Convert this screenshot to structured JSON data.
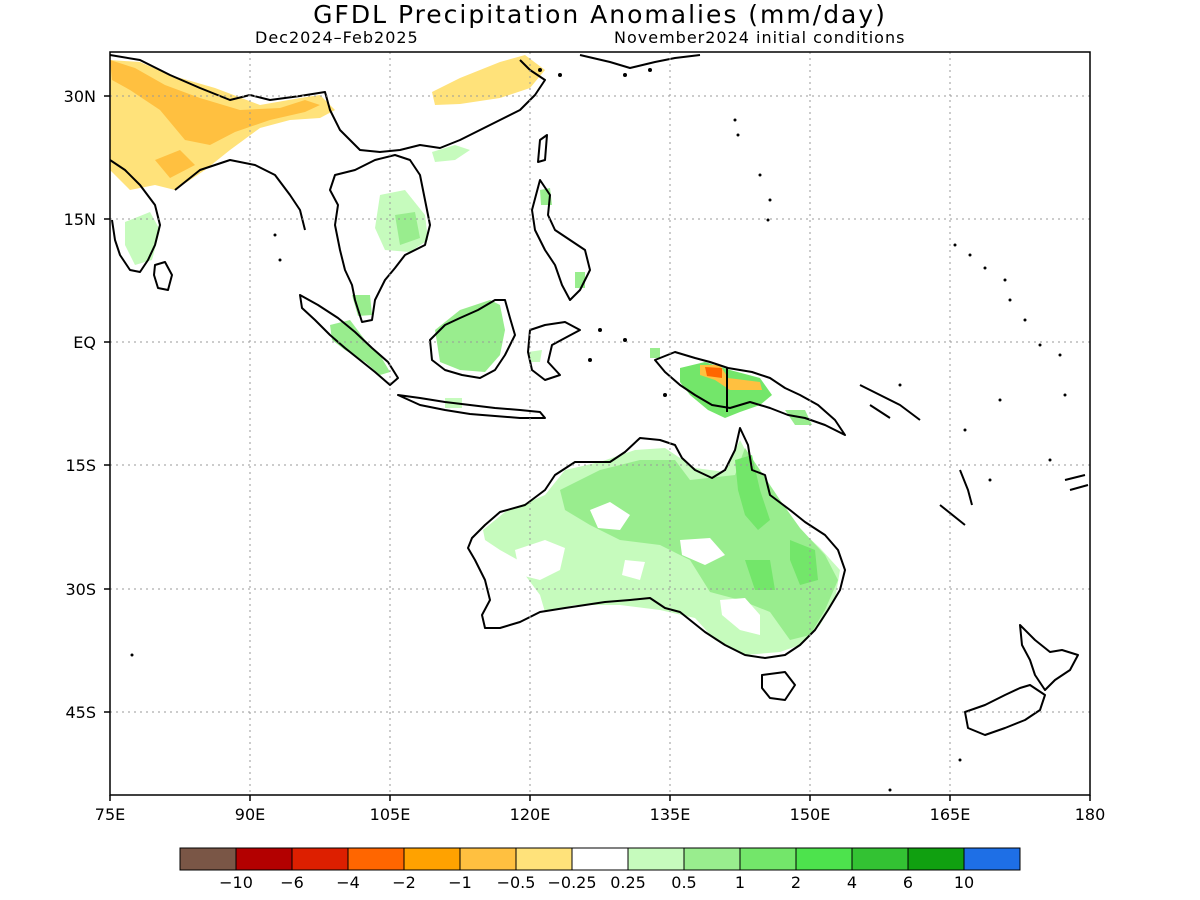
{
  "title": "GFDL Precipitation Anomalies (mm/day)",
  "subtitle_left": "Dec2024–Feb2025",
  "subtitle_right": "November2024 initial conditions",
  "map": {
    "lon_range": [
      75,
      180
    ],
    "lat_range": [
      -53,
      35
    ],
    "lat_ticks": [
      "30N",
      "15N",
      "EQ",
      "15S",
      "30S",
      "45S"
    ],
    "lon_ticks": [
      "75E",
      "90E",
      "105E",
      "120E",
      "135E",
      "150E",
      "165E",
      "180"
    ],
    "grid": "dotted",
    "regions": [
      {
        "name": "Northern India / Himalaya",
        "anomaly": "-0.5 to -2 (dry)"
      },
      {
        "name": "Eastern China",
        "anomaly": "-0.5 to -1 (dry)"
      },
      {
        "name": "Indochina",
        "anomaly": "+0.25 to +1 (wet)"
      },
      {
        "name": "Sumatra",
        "anomaly": "+0.5 to +1 (wet)"
      },
      {
        "name": "Borneo",
        "anomaly": "+0.5 to +2 (wet)"
      },
      {
        "name": "New Guinea central",
        "anomaly": "-1 to -4 (dry)"
      },
      {
        "name": "New Guinea south",
        "anomaly": "+0.5 to +4 (wet)"
      },
      {
        "name": "Northern Australia",
        "anomaly": "+0.5 to +2 (wet)"
      },
      {
        "name": "Eastern Australia",
        "anomaly": "+0.5 to +2 (wet)"
      },
      {
        "name": "Southwest Australia",
        "anomaly": "+0.25 to +0.5 (wet)"
      }
    ]
  },
  "colorbar": {
    "colors": [
      "#7a5646",
      "#b30000",
      "#dd1f00",
      "#ff6600",
      "#ffa200",
      "#ffc040",
      "#ffe27a",
      "#ffffff",
      "#c6fbbd",
      "#99ed8e",
      "#73e66a",
      "#4de34d",
      "#33c233",
      "#10a010",
      "#1e6fe6"
    ],
    "labels": [
      "−10",
      "−6",
      "−4",
      "−2",
      "−1",
      "−0.5",
      "−0.25",
      "0.25",
      "0.5",
      "1",
      "2",
      "4",
      "6",
      "10"
    ]
  }
}
